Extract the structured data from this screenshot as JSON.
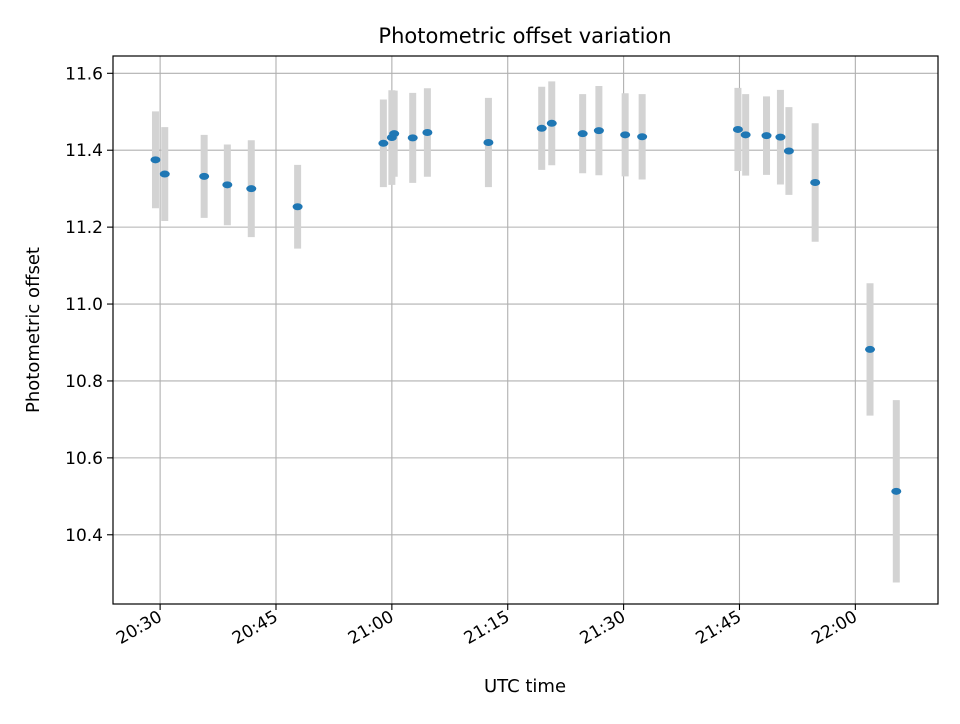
{
  "chart_data": {
    "type": "scatter",
    "title": "Photometric offset variation",
    "xlabel": "UTC time",
    "ylabel": "Photometric offset",
    "xlim": [
      "20:23:54",
      "22:10:42"
    ],
    "ylim": [
      10.22,
      11.645
    ],
    "x_ticks": [
      "20:30",
      "20:45",
      "21:00",
      "21:15",
      "21:30",
      "21:45",
      "22:00"
    ],
    "y_ticks": [
      "10.4",
      "10.6",
      "10.8",
      "11.0",
      "11.2",
      "11.4",
      "11.6"
    ],
    "grid": true,
    "colors": {
      "points": "#1f77b4",
      "errorbars": "#d3d3d3",
      "grid": "#b0b0b0"
    },
    "series": [
      {
        "points": [
          {
            "x": "20:29:24",
            "y": 11.375,
            "err": 0.126
          },
          {
            "x": "20:30:36",
            "y": 11.338,
            "err": 0.122
          },
          {
            "x": "20:35:42",
            "y": 11.332,
            "err": 0.108
          },
          {
            "x": "20:38:42",
            "y": 11.31,
            "err": 0.105
          },
          {
            "x": "20:41:48",
            "y": 11.3,
            "err": 0.126
          },
          {
            "x": "20:47:48",
            "y": 11.253,
            "err": 0.109
          },
          {
            "x": "20:58:54",
            "y": 11.418,
            "err": 0.114
          },
          {
            "x": "21:00:00",
            "y": 11.433,
            "err": 0.123
          },
          {
            "x": "21:00:18",
            "y": 11.443,
            "err": 0.112
          },
          {
            "x": "21:02:42",
            "y": 11.432,
            "err": 0.117
          },
          {
            "x": "21:04:36",
            "y": 11.446,
            "err": 0.115
          },
          {
            "x": "21:12:30",
            "y": 11.42,
            "err": 0.116
          },
          {
            "x": "21:19:24",
            "y": 11.457,
            "err": 0.108
          },
          {
            "x": "21:20:42",
            "y": 11.47,
            "err": 0.109
          },
          {
            "x": "21:24:42",
            "y": 11.443,
            "err": 0.103
          },
          {
            "x": "21:26:48",
            "y": 11.451,
            "err": 0.116
          },
          {
            "x": "21:30:12",
            "y": 11.44,
            "err": 0.108
          },
          {
            "x": "21:32:24",
            "y": 11.435,
            "err": 0.111
          },
          {
            "x": "21:44:48",
            "y": 11.454,
            "err": 0.108
          },
          {
            "x": "21:45:48",
            "y": 11.44,
            "err": 0.106
          },
          {
            "x": "21:48:30",
            "y": 11.438,
            "err": 0.102
          },
          {
            "x": "21:50:18",
            "y": 11.434,
            "err": 0.123
          },
          {
            "x": "21:51:24",
            "y": 11.398,
            "err": 0.114
          },
          {
            "x": "21:54:48",
            "y": 11.316,
            "err": 0.154
          },
          {
            "x": "22:01:54",
            "y": 10.882,
            "err": 0.172
          },
          {
            "x": "22:05:18",
            "y": 10.513,
            "err": 0.237
          }
        ]
      }
    ]
  }
}
